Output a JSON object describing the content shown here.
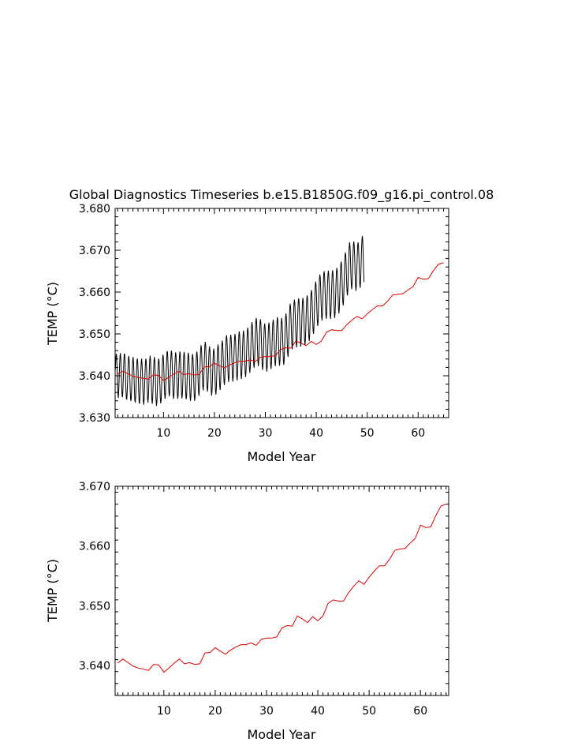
{
  "title": "Global Diagnostics Timeseries b.e15.B1850G.f09_g16.pi_control.08",
  "chart_data": [
    {
      "type": "line",
      "xlabel": "Model Year",
      "ylabel": "TEMP (°C)",
      "xlim": [
        0.5,
        66
      ],
      "ylim": [
        3.63,
        3.68
      ],
      "xticks": [
        10,
        20,
        30,
        40,
        50,
        60
      ],
      "yticks": [
        3.63,
        3.64,
        3.65,
        3.66,
        3.67,
        3.68
      ],
      "ytick_labels": [
        "3.630",
        "3.640",
        "3.650",
        "3.660",
        "3.670",
        "3.680"
      ],
      "colors": {
        "monthly": "#000000",
        "annual": "#e00000"
      },
      "series": [
        {
          "role": "monthly",
          "x_start": 0.54,
          "x_step": 0.0833333,
          "values": [
            3.6415,
            3.6438,
            3.6451,
            3.6449,
            3.6422,
            3.6388,
            3.6358,
            3.6347,
            3.6362,
            3.6392,
            3.6425,
            3.6448,
            3.6454,
            3.644,
            3.6408,
            3.6374,
            3.6351,
            3.635,
            3.637,
            3.6402,
            3.6433,
            3.6452,
            3.6452,
            3.6433,
            3.6399,
            3.6366,
            3.6345,
            3.6344,
            3.6362,
            3.6393,
            3.6424,
            3.6444,
            3.6447,
            3.6431,
            3.64,
            3.6366,
            3.6343,
            3.634,
            3.6356,
            3.6385,
            3.6416,
            3.6438,
            3.6445,
            3.6431,
            3.64,
            3.6365,
            3.6341,
            3.6336,
            3.6351,
            3.6381,
            3.6413,
            3.6436,
            3.6441,
            3.6428,
            3.6399,
            3.6364,
            3.6338,
            3.6333,
            3.6347,
            3.6377,
            3.6409,
            3.6433,
            3.6441,
            3.6429,
            3.64,
            3.6365,
            3.6338,
            3.6331,
            3.6345,
            3.6375,
            3.6408,
            3.6433,
            3.6441,
            3.6432,
            3.6406,
            3.6372,
            3.6344,
            3.6336,
            3.635,
            3.638,
            3.6413,
            3.6438,
            3.6448,
            3.6438,
            3.641,
            3.6374,
            3.6344,
            3.6333,
            3.6345,
            3.6374,
            3.6408,
            3.6434,
            3.6445,
            3.6437,
            3.6409,
            3.6372,
            3.6341,
            3.6328,
            3.6338,
            3.6366,
            3.64,
            3.6428,
            3.6441,
            3.6436,
            3.6412,
            3.6378,
            3.6347,
            3.6334,
            3.6343,
            3.6371,
            3.6406,
            3.6435,
            3.645,
            3.6447,
            3.6425,
            3.6391,
            3.636,
            3.6345,
            3.6353,
            3.638,
            3.6414,
            3.6443,
            3.6459,
            3.6456,
            3.6433,
            3.6399,
            3.6366,
            3.6351,
            3.6358,
            3.6385,
            3.6419,
            3.6447,
            3.646,
            3.6454,
            3.6429,
            3.6392,
            3.6359,
            3.6345,
            3.6352,
            3.6379,
            3.6414,
            3.6443,
            3.6456,
            3.645,
            3.6425,
            3.639,
            3.6358,
            3.6345,
            3.6353,
            3.6381,
            3.6416,
            3.6445,
            3.6458,
            3.6452,
            3.6427,
            3.6391,
            3.6359,
            3.6346,
            3.6355,
            3.6383,
            3.6417,
            3.6445,
            3.6457,
            3.645,
            3.6424,
            3.6388,
            3.6356,
            3.6344,
            3.6353,
            3.6382,
            3.6417,
            3.6445,
            3.6455,
            3.6447,
            3.642,
            3.6384,
            3.6352,
            3.634,
            3.635,
            3.638,
            3.6415,
            3.6442,
            3.6452,
            3.6443,
            3.6416,
            3.6381,
            3.635,
            3.634,
            3.6352,
            3.6383,
            3.6419,
            3.6447,
            3.6458,
            3.645,
            3.6424,
            3.639,
            3.6361,
            3.6352,
            3.6365,
            3.6397,
            3.6434,
            3.6462,
            3.6473,
            3.6465,
            3.6439,
            3.6405,
            3.6375,
            3.6365,
            3.6378,
            3.641,
            3.6445,
            3.6472,
            3.6481,
            3.6471,
            3.6443,
            3.6406,
            3.6374,
            3.6362,
            3.6373,
            3.6403,
            3.6437,
            3.6462,
            3.647,
            3.6459,
            3.6431,
            3.6395,
            3.6364,
            3.6353,
            3.6365,
            3.6395,
            3.643,
            3.6456,
            3.6465,
            3.6455,
            3.6429,
            3.6394,
            3.6364,
            3.6355,
            3.6369,
            3.6402,
            3.6438,
            3.6465,
            3.6475,
            3.6466,
            3.644,
            3.6406,
            3.6376,
            3.6366,
            3.638,
            3.6411,
            3.6447,
            3.6474,
            3.6484,
            3.6476,
            3.645,
            3.6416,
            3.6387,
            3.6378,
            3.6392,
            3.6425,
            3.646,
            3.6487,
            3.6497,
            3.6488,
            3.6461,
            3.6426,
            3.6396,
            3.6385,
            3.6398,
            3.6429,
            3.6463,
            3.6489,
            3.6498,
            3.6489,
            3.6462,
            3.6427,
            3.6397,
            3.6386,
            3.6399,
            3.643,
            3.6465,
            3.6491,
            3.65,
            3.649,
            3.6463,
            3.6429,
            3.6399,
            3.6389,
            3.6403,
            3.6435,
            3.647,
            3.6497,
            3.6506,
            3.6497,
            3.6469,
            3.6434,
            3.6403,
            3.6392,
            3.6405,
            3.6437,
            3.6472,
            3.6499,
            3.6508,
            3.6499,
            3.6472,
            3.6437,
            3.6407,
            3.6397,
            3.641,
            3.6442,
            3.6478,
            3.6505,
            3.6515,
            3.6506,
            3.648,
            3.6445,
            3.6416,
            3.6407,
            3.6421,
            3.6454,
            3.649,
            3.6518,
            3.6528,
            3.6519,
            3.6493,
            3.6458,
            3.6428,
            3.6419,
            3.6433,
            3.6466,
            3.6502,
            3.6529,
            3.6538,
            3.6529,
            3.6501,
            3.6465,
            3.6434,
            3.6423,
            3.6436,
            3.6467,
            3.6501,
            3.6527,
            3.6535,
            3.6524,
            3.6495,
            3.6458,
            3.6426,
            3.6414,
            3.6426,
            3.6457,
            3.6491,
            3.6517,
            3.6525,
            3.6515,
            3.6487,
            3.6451,
            3.642,
            3.641,
            3.6423,
            3.6455,
            3.6491,
            3.6518,
            3.6527,
            3.6518,
            3.6491,
            3.6456,
            3.6426,
            3.6416,
            3.643,
            3.6462,
            3.6498,
            3.6525,
            3.6534,
            3.6525,
            3.6498,
            3.6463,
            3.6433,
            3.6423,
            3.6437,
            3.6469,
            3.6504,
            3.6531,
            3.654,
            3.653,
            3.6502,
            3.6466,
            3.6435,
            3.6424,
            3.6437,
            3.6468,
            3.6503,
            3.6529,
            3.6538,
            3.6528,
            3.6501,
            3.6466,
            3.6436,
            3.6426,
            3.644,
            3.6473,
            3.651,
            3.6538,
            3.6549,
            3.6542,
            3.6516,
            3.6482,
            3.6453,
            3.6445,
            3.6461,
            3.6495,
            3.6532,
            3.6561,
            3.6572,
            3.6564,
            3.6538,
            3.6503,
            3.6473,
            3.6463,
            3.6477,
            3.651,
            3.6546,
            3.6573,
            3.6582,
            3.6573,
            3.6546,
            3.651,
            3.6479,
            3.6468,
            3.6482,
            3.6514,
            3.6549,
            3.6576,
            3.6585,
            3.6576,
            3.6548,
            3.6512,
            3.6481,
            3.647,
            3.6483,
            3.6515,
            3.655,
            3.6577,
            3.6586,
            3.6577,
            3.655,
            3.6514,
            3.6483,
            3.6473,
            3.6487,
            3.6519,
            3.6555,
            3.6582,
            3.6592,
            3.6584,
            3.6557,
            3.6522,
            3.6492,
            3.6483,
            3.6497,
            3.6531,
            3.6567,
            3.6595,
            3.6605,
            3.6597,
            3.6571,
            3.6537,
            3.6508,
            3.65,
            3.6515,
            3.6549,
            3.6586,
            3.6614,
            3.6625,
            3.6617,
            3.6591,
            3.6557,
            3.6528,
            3.6519,
            3.6534,
            3.6568,
            3.6604,
            3.6632,
            3.6642,
            3.6634,
            3.6607,
            3.6572,
            3.6542,
            3.6532,
            3.6546,
            3.6578,
            3.6614,
            3.6641,
            3.665,
            3.6641,
            3.6614,
            3.6578,
            3.6547,
            3.6536,
            3.6549,
            3.6581,
            3.6616,
            3.6642,
            3.6651,
            3.6641,
            3.6614,
            3.6578,
            3.6547,
            3.6536,
            3.6549,
            3.6581,
            3.6616,
            3.6643,
            3.6652,
            3.6642,
            3.6615,
            3.6579,
            3.6548,
            3.6538,
            3.6552,
            3.6585,
            3.6621,
            3.6648,
            3.6658,
            3.665,
            3.6623,
            3.6588,
            3.6558,
            3.6549,
            3.6564,
            3.6597,
            3.6634,
            3.6662,
            3.6673,
            3.6665,
            3.6639,
            3.6605,
            3.6576,
            3.6568,
            3.6583,
            3.6618,
            3.6655,
            3.6684,
            3.6695,
            3.6688,
            3.6662,
            3.6628,
            3.66,
            3.6592,
            3.6608,
            3.6643,
            3.668,
            3.6708,
            3.6719,
            3.671,
            3.6683,
            3.6648,
            3.6617,
            3.6607,
            3.662,
            3.6652,
            3.6687,
            3.6713,
            3.6721,
            3.6711,
            3.6683,
            3.6646,
            3.6615,
            3.6603,
            3.6616,
            3.6648,
            3.6683,
            3.671,
            3.6719,
            3.671,
            3.6684,
            3.6649,
            3.6619,
            3.661,
            3.6625,
            3.6659,
            3.6696,
            3.6724,
            3.6734,
            3.6724,
            3.6694,
            3.6654,
            3.6624
          ]
        },
        {
          "role": "annual",
          "x": [
            1,
            2,
            3,
            4,
            5,
            6,
            7,
            8,
            9,
            10,
            11,
            12,
            13,
            14,
            15,
            16,
            17,
            18,
            19,
            20,
            21,
            22,
            23,
            24,
            25,
            26,
            27,
            28,
            29,
            30,
            31,
            32,
            33,
            34,
            35,
            36,
            37,
            38,
            39,
            40,
            41,
            42,
            43,
            44,
            45,
            46,
            47,
            48,
            49,
            50,
            51,
            52,
            53,
            54,
            55,
            56,
            57,
            58,
            59,
            60,
            61,
            62,
            63,
            64,
            65
          ],
          "values": [
            3.6404,
            3.6411,
            3.6405,
            3.6399,
            3.6396,
            3.6394,
            3.6392,
            3.6402,
            3.6401,
            3.6389,
            3.6396,
            3.6404,
            3.6411,
            3.6403,
            3.6405,
            3.6402,
            3.6403,
            3.6421,
            3.6422,
            3.643,
            3.6424,
            3.6419,
            3.6426,
            3.6431,
            3.6435,
            3.6435,
            3.6438,
            3.6434,
            3.6444,
            3.6446,
            3.6446,
            3.6448,
            3.6463,
            3.6467,
            3.6466,
            3.6483,
            3.6478,
            3.6472,
            3.6482,
            3.6475,
            3.6483,
            3.6504,
            3.651,
            3.6508,
            3.6508,
            3.6522,
            3.6533,
            3.6542,
            3.6536,
            3.6548,
            3.6558,
            3.6567,
            3.6567,
            3.6578,
            3.6593,
            3.6595,
            3.6596,
            3.6605,
            3.6613,
            3.6635,
            3.6631,
            3.6632,
            3.6651,
            3.6667,
            3.667
          ]
        }
      ]
    },
    {
      "type": "line",
      "xlabel": "Model Year",
      "ylabel": "TEMP (°C)",
      "xlim": [
        0.5,
        65.5
      ],
      "ylim": [
        3.635,
        3.67
      ],
      "xticks": [
        10,
        20,
        30,
        40,
        50,
        60
      ],
      "yticks": [
        3.64,
        3.65,
        3.66,
        3.67
      ],
      "ytick_labels": [
        "3.640",
        "3.650",
        "3.660",
        "3.670"
      ],
      "colors": {
        "annual": "#e00000"
      },
      "series": [
        {
          "role": "annual",
          "ref": 0
        }
      ]
    }
  ]
}
